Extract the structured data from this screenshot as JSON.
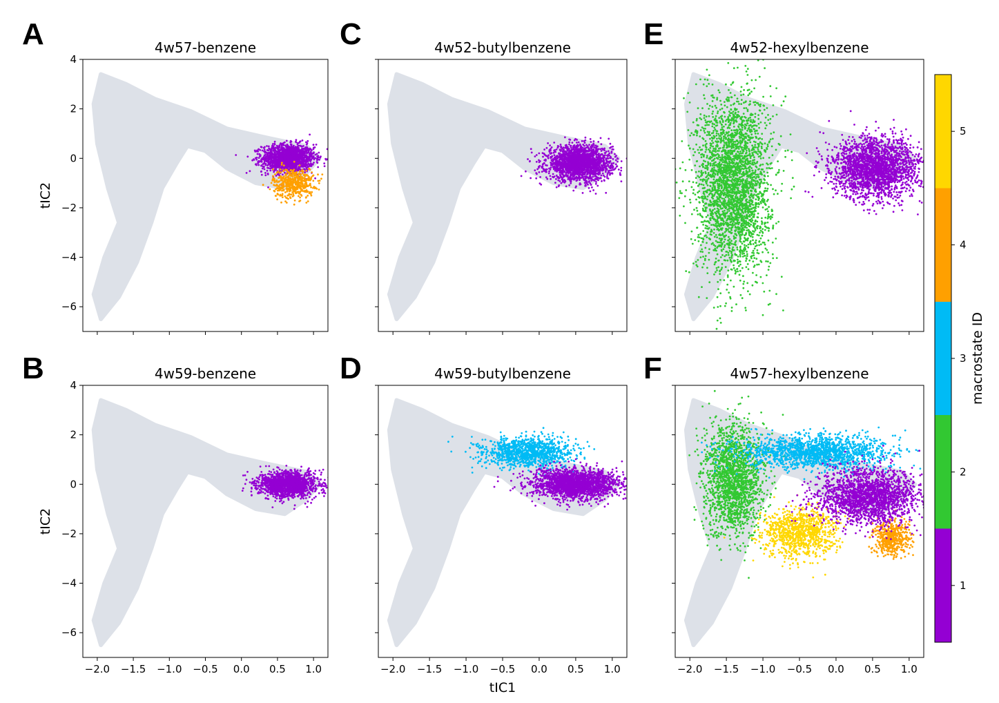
{
  "figure": {
    "colorbar": {
      "label": "macrostate ID",
      "ticks": [
        "1",
        "2",
        "3",
        "4",
        "5"
      ],
      "colors": [
        "#9400d3",
        "#32c832",
        "#00bbf5",
        "#ffa000",
        "#ffd700"
      ]
    },
    "background_color": "#dde1e8"
  },
  "chart_data": [
    {
      "letter": "A",
      "type": "scatter",
      "title": "4w57-benzene",
      "xlabel": "",
      "ylabel": "tIC2",
      "xlim": [
        -2.2,
        1.2
      ],
      "ylim": [
        -7,
        4
      ],
      "xticks": [
        "−2.0",
        "−1.5",
        "−1.0",
        "−0.5",
        "0.0",
        "0.5",
        "1.0"
      ],
      "yticks": [
        "−6",
        "−4",
        "−2",
        "0",
        "2",
        "4"
      ],
      "show_xticklabels": false,
      "show_yticklabels": true,
      "series": [
        {
          "macrostate": 1,
          "cx": 0.65,
          "cy": 0.0,
          "sx": 0.18,
          "sy": 0.28,
          "n": 1600
        },
        {
          "macrostate": 4,
          "cx": 0.72,
          "cy": -1.0,
          "sx": 0.14,
          "sy": 0.3,
          "n": 500
        }
      ]
    },
    {
      "letter": "C",
      "type": "scatter",
      "title": "4w52-butylbenzene",
      "xlabel": "",
      "ylabel": "",
      "xlim": [
        -2.2,
        1.2
      ],
      "ylim": [
        -7,
        4
      ],
      "xticks": [
        "−2.0",
        "−1.5",
        "−1.0",
        "−0.5",
        "0.0",
        "0.5",
        "1.0"
      ],
      "yticks": [
        "−6",
        "−4",
        "−2",
        "0",
        "2",
        "4"
      ],
      "show_xticklabels": false,
      "show_yticklabels": false,
      "series": [
        {
          "macrostate": 1,
          "cx": 0.55,
          "cy": -0.2,
          "sx": 0.22,
          "sy": 0.35,
          "n": 2000
        }
      ]
    },
    {
      "letter": "E",
      "type": "scatter",
      "title": "4w52-hexylbenzene",
      "xlabel": "",
      "ylabel": "",
      "xlim": [
        -2.2,
        1.2
      ],
      "ylim": [
        -7,
        4
      ],
      "xticks": [
        "−2.0",
        "−1.5",
        "−1.0",
        "−0.5",
        "0.0",
        "0.5",
        "1.0"
      ],
      "yticks": [
        "−6",
        "−4",
        "−2",
        "0",
        "2",
        "4"
      ],
      "show_xticklabels": false,
      "show_yticklabels": false,
      "series": [
        {
          "macrostate": 2,
          "cx": -1.4,
          "cy": -1.0,
          "sx": 0.25,
          "sy": 1.8,
          "n": 3000
        },
        {
          "macrostate": 1,
          "cx": 0.55,
          "cy": -0.4,
          "sx": 0.3,
          "sy": 0.6,
          "n": 2200
        }
      ]
    },
    {
      "letter": "B",
      "type": "scatter",
      "title": "4w59-benzene",
      "xlabel": "",
      "ylabel": "tIC2",
      "xlim": [
        -2.2,
        1.2
      ],
      "ylim": [
        -7,
        4
      ],
      "xticks": [
        "−2.0",
        "−1.5",
        "−1.0",
        "−0.5",
        "0.0",
        "0.5",
        "1.0"
      ],
      "yticks": [
        "−6",
        "−4",
        "−2",
        "0",
        "2",
        "4"
      ],
      "show_xticklabels": true,
      "show_yticklabels": true,
      "series": [
        {
          "macrostate": 1,
          "cx": 0.65,
          "cy": 0.0,
          "sx": 0.2,
          "sy": 0.25,
          "n": 1600
        }
      ]
    },
    {
      "letter": "D",
      "type": "scatter",
      "title": "4w59-butylbenzene",
      "xlabel": "tIC1",
      "ylabel": "",
      "xlim": [
        -2.2,
        1.2
      ],
      "ylim": [
        -7,
        4
      ],
      "xticks": [
        "−2.0",
        "−1.5",
        "−1.0",
        "−0.5",
        "0.0",
        "0.5",
        "1.0"
      ],
      "yticks": [
        "−6",
        "−4",
        "−2",
        "0",
        "2",
        "4"
      ],
      "show_xticklabels": true,
      "show_yticklabels": false,
      "series": [
        {
          "macrostate": 3,
          "cx": -0.15,
          "cy": 1.3,
          "sx": 0.3,
          "sy": 0.3,
          "n": 1200
        },
        {
          "macrostate": 1,
          "cx": 0.5,
          "cy": 0.0,
          "sx": 0.3,
          "sy": 0.3,
          "n": 2000
        }
      ]
    },
    {
      "letter": "F",
      "type": "scatter",
      "title": "4w57-hexylbenzene",
      "xlabel": "",
      "ylabel": "",
      "xlim": [
        -2.2,
        1.2
      ],
      "ylim": [
        -7,
        4
      ],
      "xticks": [
        "−2.0",
        "−1.5",
        "−1.0",
        "−0.5",
        "0.0",
        "0.5",
        "1.0"
      ],
      "yticks": [
        "−6",
        "−4",
        "−2",
        "0",
        "2",
        "4"
      ],
      "show_xticklabels": true,
      "show_yticklabels": false,
      "series": [
        {
          "macrostate": 2,
          "cx": -1.4,
          "cy": 0.2,
          "sx": 0.2,
          "sy": 1.1,
          "n": 1800
        },
        {
          "macrostate": 3,
          "cx": -0.3,
          "cy": 1.3,
          "sx": 0.5,
          "sy": 0.35,
          "n": 1600
        },
        {
          "macrostate": 5,
          "cx": -0.5,
          "cy": -2.0,
          "sx": 0.25,
          "sy": 0.5,
          "n": 1000
        },
        {
          "macrostate": 4,
          "cx": 0.75,
          "cy": -2.2,
          "sx": 0.12,
          "sy": 0.35,
          "n": 500
        },
        {
          "macrostate": 1,
          "cx": 0.45,
          "cy": -0.5,
          "sx": 0.35,
          "sy": 0.55,
          "n": 2000
        }
      ]
    }
  ]
}
